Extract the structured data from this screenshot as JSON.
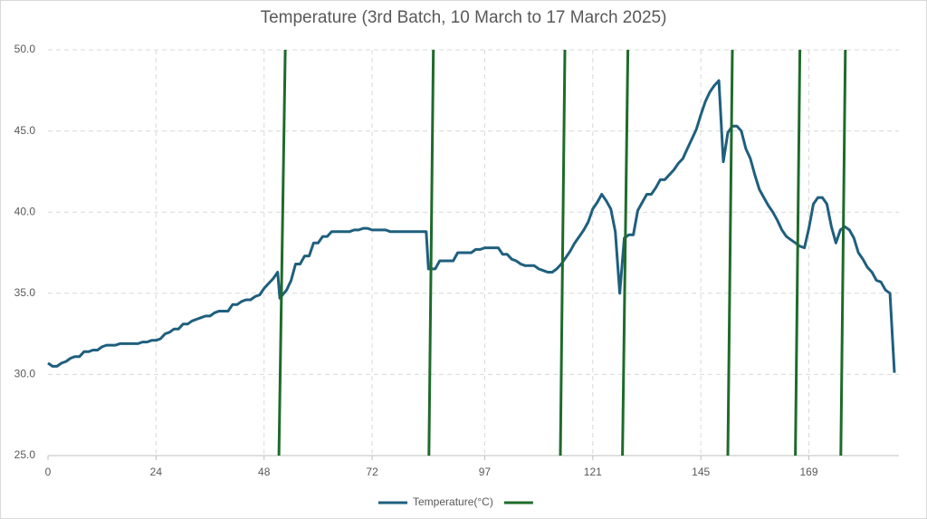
{
  "chart_data": {
    "type": "line",
    "title": "Temperature (3rd Batch, 10 March to 17 March 2025)",
    "xlim": [
      0,
      189
    ],
    "xticks": [
      0,
      24,
      48,
      72,
      97,
      121,
      145,
      169
    ],
    "ylim": [
      25,
      50
    ],
    "yticks": [
      {
        "value": 25,
        "label": "25.0"
      },
      {
        "value": 30,
        "label": "30.0"
      },
      {
        "value": 35,
        "label": "35.0"
      },
      {
        "value": 40,
        "label": "40.0"
      },
      {
        "value": 45,
        "label": "45.0"
      },
      {
        "value": 50,
        "label": "50.0"
      }
    ],
    "grid": true,
    "legend": "bottom",
    "series": [
      {
        "name": "Temperature(°C)",
        "color": "#1f5f7e",
        "x": [
          0,
          1,
          2,
          3,
          4,
          5,
          6,
          7,
          8,
          9,
          10,
          11,
          12,
          13,
          15,
          16,
          20,
          21,
          22,
          23,
          24,
          25,
          26,
          27,
          28,
          29,
          30,
          31,
          32,
          33,
          34,
          35,
          36,
          37,
          38,
          40,
          41,
          42,
          43,
          44,
          45,
          46,
          47,
          48,
          49,
          50,
          51,
          51.5,
          53,
          54,
          55,
          56,
          57,
          58,
          59,
          60,
          61,
          62,
          63,
          66,
          67,
          68,
          69,
          70,
          71,
          72,
          75,
          76,
          84,
          84.5,
          86,
          87,
          90,
          91,
          94,
          95,
          96,
          97,
          100,
          101,
          102,
          103,
          104,
          105,
          106,
          108,
          109,
          110,
          111,
          112,
          113,
          114,
          115,
          116,
          117,
          118,
          119,
          120,
          121,
          122,
          123,
          124,
          125,
          126,
          127,
          128,
          129,
          130,
          131,
          132,
          133,
          134,
          135,
          136,
          137,
          138,
          139,
          140,
          141,
          142,
          143,
          144,
          145,
          146,
          147,
          148,
          149,
          150,
          151,
          152,
          153,
          154,
          155,
          156,
          157,
          158,
          159,
          160,
          161,
          162,
          163,
          164,
          165,
          166,
          167,
          168,
          169,
          170,
          171,
          172,
          173,
          174,
          175,
          176,
          177,
          178,
          179,
          180,
          181,
          182,
          183,
          184,
          185,
          186,
          187,
          188
        ],
        "values": [
          30.7,
          30.5,
          30.5,
          30.7,
          30.8,
          31.0,
          31.1,
          31.1,
          31.4,
          31.4,
          31.5,
          31.5,
          31.7,
          31.8,
          31.8,
          31.9,
          31.9,
          32.0,
          32.0,
          32.1,
          32.1,
          32.2,
          32.5,
          32.6,
          32.8,
          32.8,
          33.1,
          33.1,
          33.3,
          33.4,
          33.5,
          33.6,
          33.6,
          33.8,
          33.9,
          33.9,
          34.3,
          34.3,
          34.5,
          34.6,
          34.6,
          34.8,
          34.9,
          35.3,
          35.6,
          35.9,
          36.3,
          34.7,
          35.2,
          35.8,
          36.8,
          36.8,
          37.3,
          37.3,
          38.1,
          38.1,
          38.5,
          38.5,
          38.8,
          38.8,
          38.8,
          38.9,
          38.9,
          39.0,
          39.0,
          38.9,
          38.9,
          38.8,
          38.8,
          36.5,
          36.5,
          37.0,
          37.0,
          37.5,
          37.5,
          37.7,
          37.7,
          37.8,
          37.8,
          37.4,
          37.4,
          37.1,
          37.0,
          36.8,
          36.7,
          36.7,
          36.5,
          36.4,
          36.3,
          36.3,
          36.5,
          36.8,
          37.2,
          37.6,
          38.1,
          38.5,
          38.9,
          39.4,
          40.2,
          40.6,
          41.1,
          40.7,
          40.2,
          38.8,
          35.0,
          38.4,
          38.6,
          38.6,
          40.1,
          40.6,
          41.1,
          41.1,
          41.5,
          42.0,
          42.0,
          42.3,
          42.6,
          43.0,
          43.3,
          43.9,
          44.5,
          45.1,
          46.0,
          46.8,
          47.4,
          47.8,
          48.1,
          43.1,
          44.9,
          45.3,
          45.3,
          45.0,
          43.9,
          43.3,
          42.3,
          41.4,
          40.9,
          40.4,
          40.0,
          39.5,
          38.9,
          38.5,
          38.3,
          38.1,
          37.9,
          37.8,
          39.0,
          40.5,
          40.9,
          40.9,
          40.5,
          39.1,
          38.1,
          38.9,
          39.1,
          38.9,
          38.4,
          37.5,
          37.1,
          36.6,
          36.3,
          35.8,
          35.7,
          35.2,
          35.0,
          30.1
        ]
      },
      {
        "color": "#1e6b2a",
        "x": [
          51.3,
          52.7,
          null,
          84.6,
          85.6,
          null,
          113.8,
          114.8,
          null,
          127.6,
          128.8,
          null,
          151.0,
          152.0,
          null,
          166.0,
          167.0,
          null,
          176.1,
          177.1
        ],
        "values": [
          25,
          50,
          null,
          25,
          50,
          null,
          25,
          50,
          null,
          25,
          50,
          null,
          25,
          50,
          null,
          25,
          50,
          null,
          25,
          50
        ]
      }
    ]
  }
}
